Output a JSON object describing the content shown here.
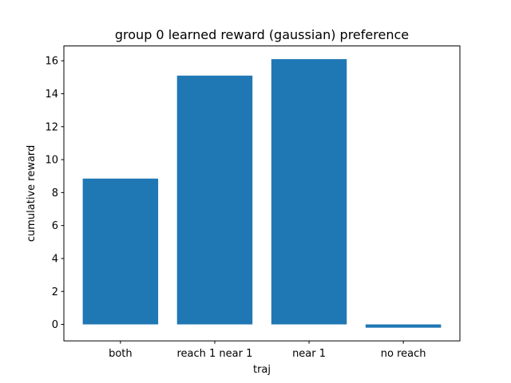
{
  "chart_data": {
    "type": "bar",
    "title": "group 0 learned reward (gaussian) preference",
    "xlabel": "traj",
    "ylabel": "cumulative reward",
    "categories": [
      "both",
      "reach 1 near 1",
      "near 1",
      "no reach"
    ],
    "values": [
      8.85,
      15.1,
      16.1,
      -0.2
    ],
    "ylim": [
      -1.0,
      16.9
    ],
    "yticks": [
      0,
      2,
      4,
      6,
      8,
      10,
      12,
      14,
      16
    ],
    "grid": false,
    "bar_color": "#1f77b4"
  }
}
